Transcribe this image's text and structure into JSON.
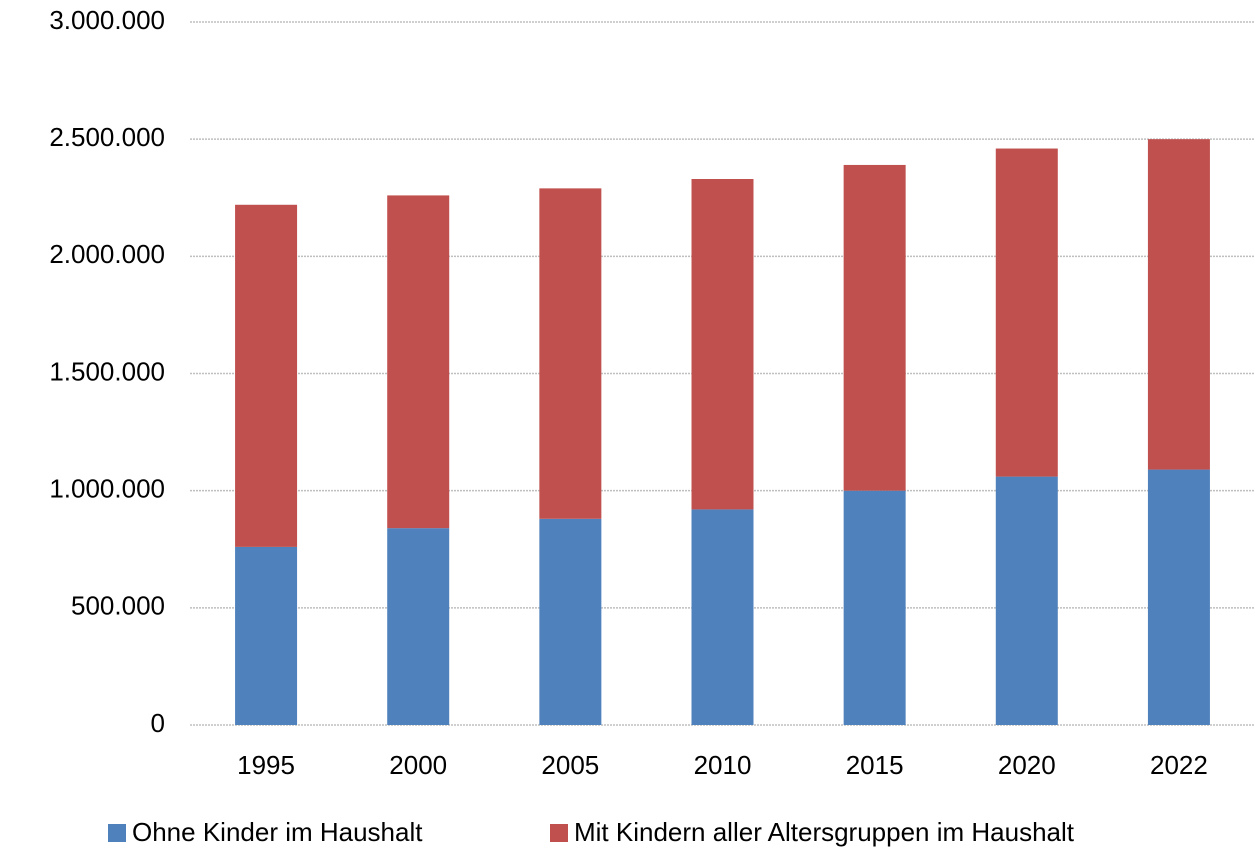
{
  "chart_data": {
    "type": "stacked_bar",
    "categories": [
      "1995",
      "2000",
      "2005",
      "2010",
      "2015",
      "2020",
      "2022"
    ],
    "series": [
      {
        "name": "Ohne Kinder im Haushalt",
        "color": "#4f81bd",
        "values": [
          760000,
          840000,
          880000,
          920000,
          1000000,
          1060000,
          1090000
        ]
      },
      {
        "name": "Mit Kindern aller Altersgruppen im Haushalt",
        "color": "#c0504d",
        "values": [
          1460000,
          1420000,
          1410000,
          1410000,
          1390000,
          1400000,
          1410000
        ]
      }
    ],
    "ylim": [
      0,
      3000000
    ],
    "yticks": [
      0,
      {
        "value": 500000,
        "label": "500.000"
      },
      {
        "value": 1000000,
        "label": "1.000.000"
      },
      {
        "value": 1500000,
        "label": "1.500.000"
      },
      {
        "value": 2000000,
        "label": "2.000.000"
      },
      {
        "value": 2500000,
        "label": "2.500.000"
      },
      {
        "value": 3000000,
        "label": "3.000.000"
      }
    ],
    "grid": true,
    "legend": "bottom"
  }
}
